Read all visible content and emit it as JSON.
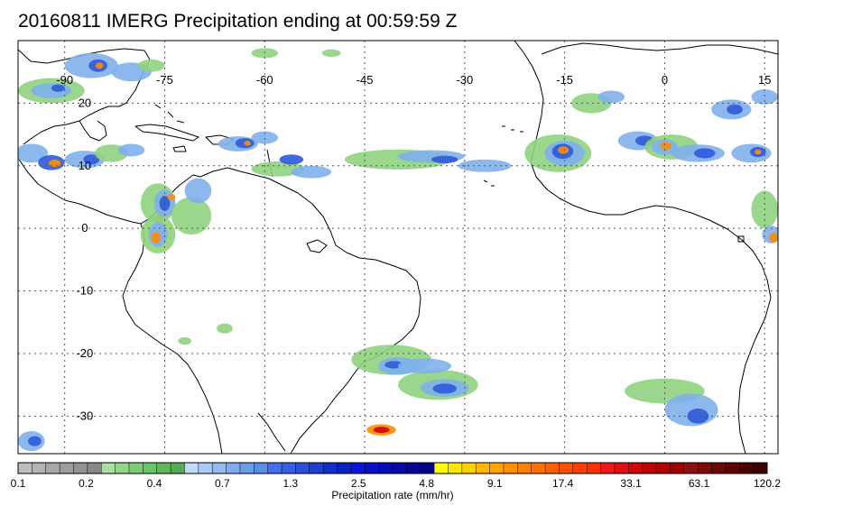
{
  "title": "20160811 IMERG Precipitation ending at 00:59:59 Z",
  "map": {
    "projection": "equirectangular",
    "lon_range": [
      -97,
      17
    ],
    "lat_range": [
      -36,
      30
    ],
    "gridlines": "dotted",
    "lon_ticks": [
      {
        "value": -90,
        "label": "-90"
      },
      {
        "value": -75,
        "label": "-75"
      },
      {
        "value": -60,
        "label": "-60"
      },
      {
        "value": -45,
        "label": "-45"
      },
      {
        "value": -30,
        "label": "-30"
      },
      {
        "value": -15,
        "label": "-15"
      },
      {
        "value": 0,
        "label": "0"
      },
      {
        "value": 15,
        "label": "15"
      }
    ],
    "lat_ticks": [
      {
        "value": 20,
        "label": "20"
      },
      {
        "value": 10,
        "label": "10"
      },
      {
        "value": 0,
        "label": "0"
      },
      {
        "value": -10,
        "label": "-10"
      },
      {
        "value": -20,
        "label": "-20"
      },
      {
        "value": -30,
        "label": "-30"
      }
    ]
  },
  "colorbar": {
    "title": "Precipitation rate (mm/hr)",
    "labels": [
      "0.1",
      "0.2",
      "0.4",
      "0.7",
      "1.3",
      "2.5",
      "4.8",
      "9.1",
      "17.4",
      "33.1",
      "63.1",
      "120.2"
    ],
    "colors": [
      "#bdbdbd",
      "#b3b3b3",
      "#a8a8a8",
      "#9d9d9d",
      "#929292",
      "#888888",
      "#a8e0a0",
      "#90d888",
      "#7cce74",
      "#6cc468",
      "#60b85c",
      "#54ac50",
      "#c4d8f8",
      "#aac8f4",
      "#94baf0",
      "#7eacec",
      "#6a9ee8",
      "#5690e4",
      "#4270ec",
      "#3460e4",
      "#2850dc",
      "#1c40d4",
      "#1030cc",
      "#0a22c0",
      "#0c14d8",
      "#0a10c8",
      "#080cb8",
      "#0808a8",
      "#060698",
      "#040488",
      "#ffff00",
      "#ffe800",
      "#ffd000",
      "#ffb800",
      "#ffa400",
      "#ff9000",
      "#ff8000",
      "#ff7000",
      "#ff6000",
      "#ff5000",
      "#ff4000",
      "#ff3000",
      "#f01818",
      "#e01010",
      "#d00808",
      "#c00000",
      "#b00000",
      "#a00000",
      "#8c1010",
      "#7c0c0c",
      "#6c0808",
      "#5c0404",
      "#4c0000",
      "#3c0000"
    ]
  },
  "precip_palette": {
    "light": "#8fd27f",
    "moderate": "#7fb0ec",
    "heavy": "#2f5ad8",
    "intense": "#ff8c00",
    "extreme": "#d80000"
  }
}
